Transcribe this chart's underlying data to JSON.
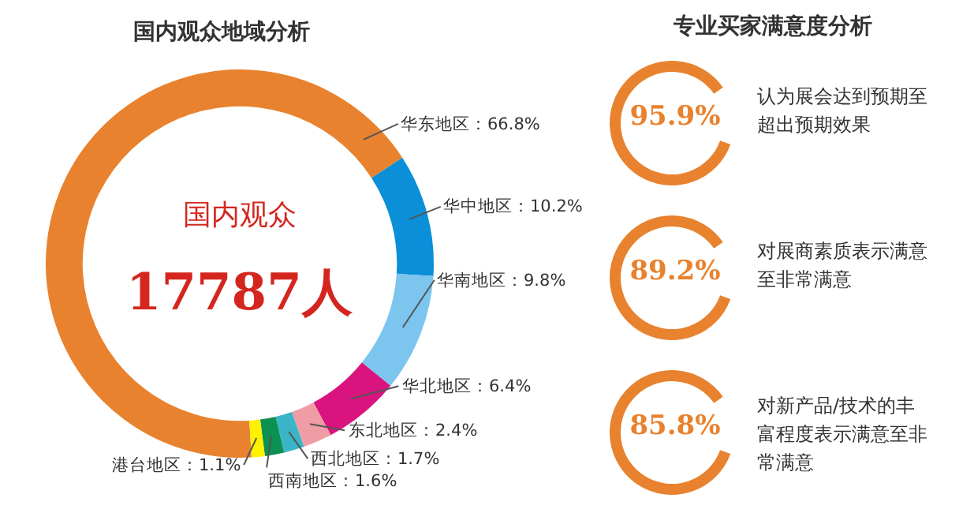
{
  "chart_data": [
    {
      "type": "donut",
      "title": "国内观众地域分析",
      "categories": [
        "华东地区：66.8%",
        "华中地区：10.2%",
        "华南地区：9.8%",
        "华北地区：6.4%",
        "东北地区：2.4%",
        "西北地区：1.7%",
        "西南地区：1.6%",
        "港台地区：1.1%"
      ],
      "values": [
        66.8,
        10.2,
        9.8,
        6.4,
        2.4,
        1.7,
        1.6,
        1.1
      ],
      "colors": [
        "#e8822e",
        "#0a8fd8",
        "#7bc5ee",
        "#d9147e",
        "#ef9ca4",
        "#3ab5c8",
        "#0b9151",
        "#fff200"
      ],
      "annotations": [
        "国内观众",
        "17787人"
      ]
    },
    {
      "type": "other",
      "title": "专业买家满意度分析",
      "annotations": [
        "95.9%",
        "认为展会达到预期至超出预期效果",
        "89.2%",
        "对展商素质表示满意至非常满意",
        "85.8%",
        "对新产品/技术的丰富程度表示满意至非常满意"
      ]
    }
  ]
}
